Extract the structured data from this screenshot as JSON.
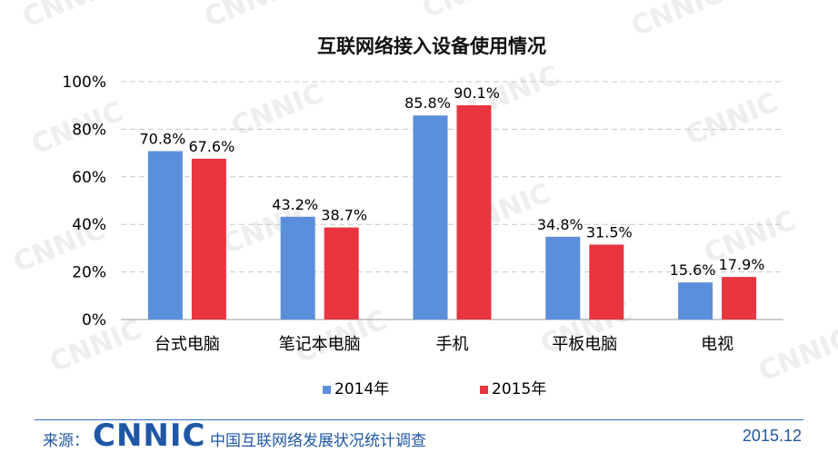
{
  "watermark_text": "CNNIC",
  "chart_data": {
    "type": "bar",
    "title": "互联网络接入设备使用情况",
    "categories": [
      "台式电脑",
      "笔记本电脑",
      "手机",
      "平板电脑",
      "电视"
    ],
    "series": [
      {
        "name": "2014年",
        "color": "#5b8fdb",
        "values": [
          70.8,
          43.2,
          85.8,
          34.8,
          15.6
        ],
        "labels": [
          "70.8%",
          "43.2%",
          "85.8%",
          "34.8%",
          "15.6%"
        ]
      },
      {
        "name": "2015年",
        "color": "#e8353f",
        "values": [
          67.6,
          38.7,
          90.1,
          31.5,
          17.9
        ],
        "labels": [
          "67.6%",
          "38.7%",
          "90.1%",
          "31.5%",
          "17.9%"
        ]
      }
    ],
    "ylim": [
      0,
      100
    ],
    "yticks": [
      0,
      20,
      40,
      60,
      80,
      100
    ],
    "ytick_labels": [
      "0%",
      "20%",
      "40%",
      "60%",
      "80%",
      "100%"
    ],
    "grid": true,
    "legend_position": "bottom-center",
    "xlabel": "",
    "ylabel": ""
  },
  "footer": {
    "source_label": "来源：",
    "logo_text": "CNNIC",
    "report_title": "中国互联网络发展状况统计调查",
    "date": "2015.12"
  },
  "colors": {
    "series_2014": "#5b8fdb",
    "series_2015": "#e8353f",
    "brand_blue": "#1f57a6",
    "gridline": "#c8c8c8"
  }
}
